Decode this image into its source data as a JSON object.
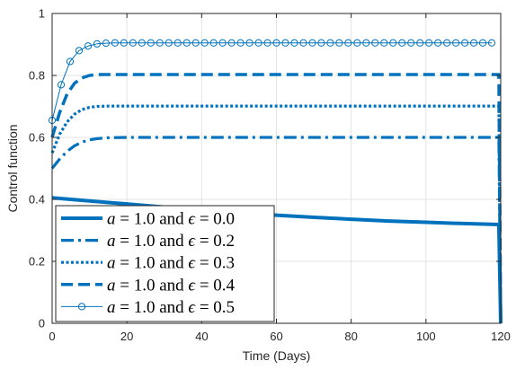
{
  "chart_data": {
    "type": "line",
    "title": "",
    "xlabel": "Time (Days)",
    "ylabel": "Control function",
    "xlim": [
      0,
      120
    ],
    "ylim": [
      0,
      1
    ],
    "xticks": [
      0,
      20,
      40,
      60,
      80,
      100,
      120
    ],
    "yticks": [
      0,
      0.2,
      0.4,
      0.6,
      0.8,
      1
    ],
    "ytick_labels": [
      "0",
      "0.2",
      "0.4",
      "0.6",
      "0.8",
      "1"
    ],
    "grid": true,
    "legend_position": "bottom-left",
    "line_color": "#0072BD",
    "series": [
      {
        "name": "a = 1.0 and ϵ = 0.0",
        "legend_parts": [
          "a",
          " = 1.0 and ",
          "ϵ",
          " = 0.0"
        ],
        "style": "solid-thick",
        "x": [
          0,
          10,
          20,
          30,
          40,
          50,
          60,
          70,
          80,
          90,
          100,
          110,
          119.5,
          120
        ],
        "y": [
          0.405,
          0.395,
          0.385,
          0.375,
          0.365,
          0.357,
          0.349,
          0.342,
          0.336,
          0.33,
          0.326,
          0.322,
          0.319,
          0.0
        ]
      },
      {
        "name": "a = 1.0 and ϵ = 0.2",
        "legend_parts": [
          "a",
          " = 1.0 and ",
          "ϵ",
          " = 0.2"
        ],
        "style": "dashdot",
        "x": [
          0,
          2,
          4,
          6,
          8,
          10,
          12,
          15,
          20,
          30,
          40,
          60,
          80,
          100,
          119.5,
          120
        ],
        "y": [
          0.5,
          0.53,
          0.555,
          0.573,
          0.585,
          0.592,
          0.596,
          0.599,
          0.6,
          0.6,
          0.6,
          0.6,
          0.6,
          0.6,
          0.6,
          0.0
        ]
      },
      {
        "name": "a = 1.0 and ϵ = 0.3",
        "legend_parts": [
          "a",
          " = 1.0 and ",
          "ϵ",
          " = 0.3"
        ],
        "style": "dotted",
        "x": [
          0,
          2,
          4,
          6,
          8,
          10,
          12,
          15,
          20,
          30,
          40,
          60,
          80,
          100,
          119.5,
          120
        ],
        "y": [
          0.55,
          0.61,
          0.65,
          0.675,
          0.69,
          0.697,
          0.7,
          0.701,
          0.701,
          0.701,
          0.701,
          0.701,
          0.701,
          0.701,
          0.701,
          0.0
        ]
      },
      {
        "name": "a = 1.0 and ϵ = 0.4",
        "legend_parts": [
          "a",
          " = 1.0 and ",
          "ϵ",
          " = 0.4"
        ],
        "style": "dashed",
        "x": [
          0,
          2,
          4,
          6,
          8,
          10,
          12,
          15,
          20,
          30,
          40,
          60,
          80,
          100,
          119.5,
          120
        ],
        "y": [
          0.6,
          0.68,
          0.74,
          0.775,
          0.792,
          0.8,
          0.803,
          0.803,
          0.803,
          0.803,
          0.803,
          0.803,
          0.803,
          0.803,
          0.803,
          0.0
        ]
      },
      {
        "name": "a = 1.0 and ϵ = 0.5",
        "legend_parts": [
          "a",
          " = 1.0 and ",
          "ϵ",
          " = 0.5"
        ],
        "style": "solid-thin-circles",
        "x": [
          0,
          2.4,
          4.8,
          7.2,
          9.6,
          12,
          14.4,
          16.8,
          19.2,
          21.6,
          24,
          26.4,
          28.8,
          31.2,
          33.6,
          36,
          38.4,
          40.8,
          43.2,
          45.6,
          48,
          50.4,
          52.8,
          55.2,
          57.6,
          60,
          62.4,
          64.8,
          67.2,
          69.6,
          72,
          74.4,
          76.8,
          79.2,
          81.6,
          84,
          86.4,
          88.8,
          91.2,
          93.6,
          96,
          98.4,
          100.8,
          103.2,
          105.6,
          108,
          110.4,
          112.8,
          115.2,
          117.6
        ],
        "y": [
          0.655,
          0.77,
          0.845,
          0.88,
          0.895,
          0.902,
          0.904,
          0.905,
          0.905,
          0.905,
          0.905,
          0.905,
          0.905,
          0.905,
          0.905,
          0.905,
          0.905,
          0.905,
          0.905,
          0.905,
          0.905,
          0.905,
          0.905,
          0.905,
          0.905,
          0.905,
          0.905,
          0.905,
          0.905,
          0.905,
          0.905,
          0.905,
          0.905,
          0.905,
          0.905,
          0.905,
          0.905,
          0.905,
          0.905,
          0.905,
          0.905,
          0.905,
          0.905,
          0.905,
          0.905,
          0.905,
          0.905,
          0.905,
          0.905,
          0.905
        ]
      }
    ]
  }
}
